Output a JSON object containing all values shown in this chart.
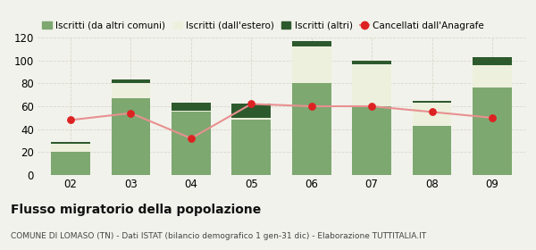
{
  "categories": [
    "02",
    "03",
    "04",
    "05",
    "06",
    "07",
    "08",
    "09"
  ],
  "iscritti_altri_comuni": [
    20,
    67,
    55,
    48,
    80,
    60,
    43,
    76
  ],
  "iscritti_estero": [
    7,
    13,
    1,
    2,
    32,
    37,
    20,
    20
  ],
  "iscritti_altri": [
    2,
    3,
    7,
    12,
    5,
    3,
    2,
    7
  ],
  "cancellati": [
    48,
    54,
    32,
    62,
    60,
    60,
    55,
    50
  ],
  "color_altri_comuni": "#7da870",
  "color_estero": "#edf0dc",
  "color_altri": "#2d5a2d",
  "color_cancellati": "#dd2222",
  "color_line": "#e89090",
  "ylim": [
    0,
    120
  ],
  "yticks": [
    0,
    20,
    40,
    60,
    80,
    100,
    120
  ],
  "legend_labels": [
    "Iscritti (da altri comuni)",
    "Iscritti (dall'estero)",
    "Iscritti (altri)",
    "Cancellati dall'Anagrafe"
  ],
  "title": "Flusso migratorio della popolazione",
  "subtitle": "COMUNE DI LOMASO (TN) - Dati ISTAT (bilancio demografico 1 gen-31 dic) - Elaborazione TUTTITALIA.IT",
  "bg_color": "#f2f2ec",
  "grid_color": "#d8d8cc"
}
